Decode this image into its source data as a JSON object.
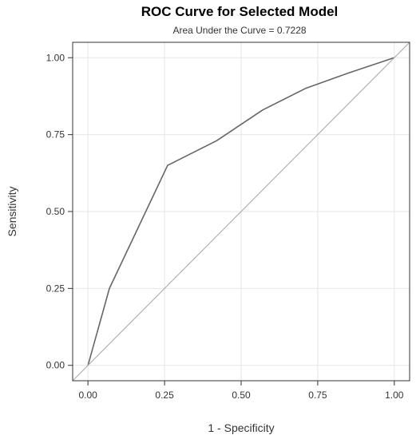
{
  "chart_data": {
    "type": "line",
    "title": "ROC Curve for Selected Model",
    "subtitle": "Area Under the Curve = 0.7228",
    "xlabel": "1 - Specificity",
    "ylabel": "Sensitivity",
    "xlim": [
      -0.05,
      1.05
    ],
    "ylim": [
      -0.05,
      1.05
    ],
    "xticks": [
      0.0,
      0.25,
      0.5,
      0.75,
      1.0
    ],
    "xtick_labels": [
      "0.00",
      "0.25",
      "0.50",
      "0.75",
      "1.00"
    ],
    "yticks": [
      0.0,
      0.25,
      0.5,
      0.75,
      1.0
    ],
    "ytick_labels": [
      "0.00",
      "0.25",
      "0.50",
      "0.75",
      "1.00"
    ],
    "grid": true,
    "series": [
      {
        "x": [
          0.0,
          0.07,
          0.26,
          0.42,
          0.57,
          0.71,
          0.85,
          1.0
        ],
        "y": [
          0.0,
          0.25,
          0.65,
          0.73,
          0.83,
          0.9,
          0.95,
          1.0
        ],
        "color": "#666666"
      },
      {
        "x": [
          -0.05,
          1.05
        ],
        "y": [
          -0.05,
          1.05
        ],
        "color": "#aaaaaa"
      }
    ]
  }
}
